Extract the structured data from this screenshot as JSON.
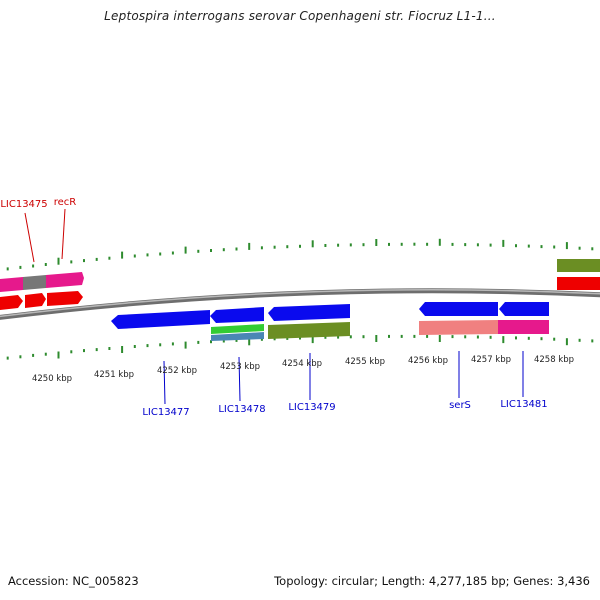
{
  "title": "Leptospira interrogans serovar Copenhageni str. Fiocruz L1-1...",
  "footer": {
    "accession": "Accession: NC_005823",
    "summary": "Topology: circular; Length: 4,277,185 bp; Genes: 3,436"
  },
  "colors": {
    "forward_cds": "#0a0aee",
    "rrna": "#6b8e23",
    "trna_pink": "#f08080",
    "magenta": "#e6198c",
    "red_gene": "#ee0000",
    "gray_gene": "#777777",
    "green_gene": "#33cc33",
    "steel_gene": "#4a86b4",
    "backbone": "#8a8a8a",
    "tick": "#2e8b2e",
    "blue_label": "#0000cc",
    "red_label": "#cc0000"
  },
  "scale_labels": [
    "4250 kbp",
    "4251 kbp",
    "4252 kbp",
    "4253 kbp",
    "4254 kbp",
    "4255 kbp",
    "4256 kbp",
    "4257 kbp",
    "4258 kbp"
  ],
  "gene_labels_top": [
    "LIC13475",
    "recR"
  ],
  "gene_labels_bottom": [
    "LIC13477",
    "LIC13478",
    "LIC13479",
    "serS",
    "LIC13481"
  ]
}
